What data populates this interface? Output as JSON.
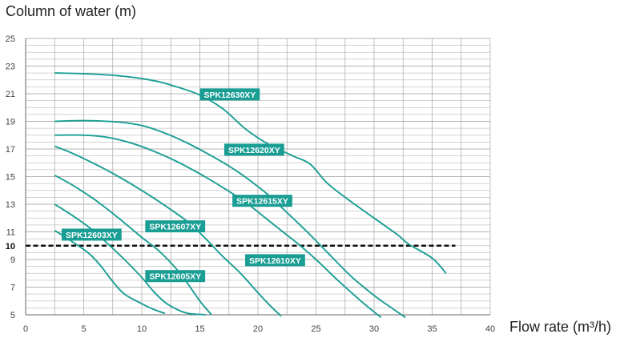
{
  "chart_data": {
    "type": "line",
    "xlabel": "Flow rate (m³/h)",
    "ylabel": "Column of water (m)",
    "xlim": [
      0,
      40
    ],
    "ylim": [
      5,
      25
    ],
    "x_ticks": [
      0,
      5,
      10,
      15,
      20,
      25,
      30,
      35,
      40
    ],
    "y_ticks": [
      5,
      7,
      9,
      10,
      11,
      13,
      15,
      17,
      19,
      21,
      23,
      25
    ],
    "grid": true,
    "reference_line": {
      "y": 10,
      "x_range": [
        0,
        37
      ],
      "style": "dashed"
    },
    "accent_color": "#1a9e94",
    "series": [
      {
        "name": "SPK12630XY",
        "x": [
          2.5,
          5,
          8,
          11,
          13,
          15,
          17,
          19,
          21,
          23,
          24.5,
          26,
          28,
          30,
          32,
          33,
          35,
          36.2
        ],
        "y": [
          22.5,
          22.45,
          22.3,
          21.95,
          21.5,
          20.9,
          19.9,
          18.4,
          17.3,
          16.5,
          15.9,
          14.5,
          13.2,
          12.0,
          10.8,
          10.1,
          9.1,
          8.0
        ]
      },
      {
        "name": "SPK12620XY",
        "x": [
          2.5,
          5,
          8,
          10,
          12,
          14,
          16,
          18,
          19.5,
          21,
          22.5,
          24,
          26,
          28,
          30,
          31.5,
          32.7
        ],
        "y": [
          19.0,
          19.05,
          18.95,
          18.7,
          18.15,
          17.4,
          16.5,
          15.5,
          14.6,
          13.6,
          12.4,
          11.2,
          9.5,
          7.8,
          6.4,
          5.5,
          4.8
        ]
      },
      {
        "name": "SPK12615XY",
        "x": [
          2.5,
          5,
          7,
          9,
          11,
          13,
          15,
          17,
          19,
          20.5,
          22,
          23.5,
          25,
          27,
          29,
          30.6
        ],
        "y": [
          18.0,
          18.0,
          17.85,
          17.45,
          16.85,
          16.1,
          15.2,
          14.2,
          13.1,
          12.1,
          11.1,
          10.1,
          9.0,
          7.4,
          5.9,
          4.8
        ]
      },
      {
        "name": "SPK12610XY",
        "x": [
          2.5,
          4,
          6,
          8,
          10,
          12,
          14,
          15.5,
          17,
          18.5,
          20,
          21,
          22
        ],
        "y": [
          17.2,
          16.7,
          15.9,
          15.0,
          14.0,
          12.9,
          11.7,
          10.5,
          9.2,
          8.0,
          6.6,
          5.7,
          4.9
        ]
      },
      {
        "name": "SPK12607XY",
        "x": [
          2.5,
          4,
          6,
          8,
          10,
          11.5,
          13,
          14,
          15,
          16
        ],
        "y": [
          15.1,
          14.4,
          13.3,
          12.0,
          10.6,
          9.6,
          8.3,
          7.2,
          6.0,
          5.0
        ]
      },
      {
        "name": "SPK12605XY",
        "x": [
          2.5,
          4,
          5.5,
          7,
          8.5,
          10,
          11,
          12,
          13,
          14,
          15.5
        ],
        "y": [
          13.0,
          12.2,
          11.3,
          10.2,
          9.0,
          7.7,
          6.7,
          5.9,
          5.4,
          5.1,
          5.0
        ]
      },
      {
        "name": "SPK12603XY",
        "x": [
          2.5,
          4,
          5.5,
          6.5,
          7.5,
          8.5,
          10,
          11,
          12
        ],
        "y": [
          11.1,
          10.3,
          9.4,
          8.5,
          7.4,
          6.5,
          5.8,
          5.4,
          5.1
        ]
      }
    ],
    "labels": [
      {
        "series": "SPK12630XY",
        "text": "SPK12630XY",
        "x": 15,
        "y": 20.95
      },
      {
        "series": "SPK12620XY",
        "text": "SPK12620XY",
        "x": 17.1,
        "y": 16.95
      },
      {
        "series": "SPK12615XY",
        "text": "SPK12615XY",
        "x": 17.8,
        "y": 13.25
      },
      {
        "series": "SPK12607XY",
        "text": "SPK12607XY",
        "x": 10.3,
        "y": 11.4
      },
      {
        "series": "SPK12603XY",
        "text": "SPK12603XY",
        "x": 3.1,
        "y": 10.8
      },
      {
        "series": "SPK12610XY",
        "text": "SPK12610XY",
        "x": 18.9,
        "y": 8.95
      },
      {
        "series": "SPK12605XY",
        "text": "SPK12605XY",
        "x": 10.3,
        "y": 7.8
      }
    ]
  }
}
